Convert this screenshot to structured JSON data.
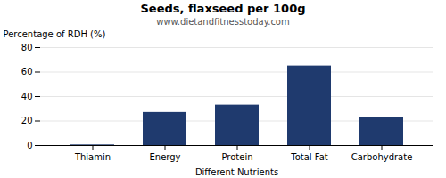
{
  "chart_data": {
    "type": "bar",
    "title": "Seeds, flaxseed per 100g",
    "subtitle": "www.dietandfitnesstoday.com",
    "xlabel": "Different Nutrients",
    "ylabel": "Percentage of RDH (%)",
    "categories": [
      "Thiamin",
      "Energy",
      "Protein",
      "Total Fat",
      "Carbohydrate"
    ],
    "values": [
      0.5,
      27,
      33,
      65,
      23
    ],
    "color": "#1f3a6e",
    "ylim": [
      0,
      80
    ],
    "yticks": [
      0,
      20,
      40,
      60,
      80
    ],
    "grid": true
  }
}
